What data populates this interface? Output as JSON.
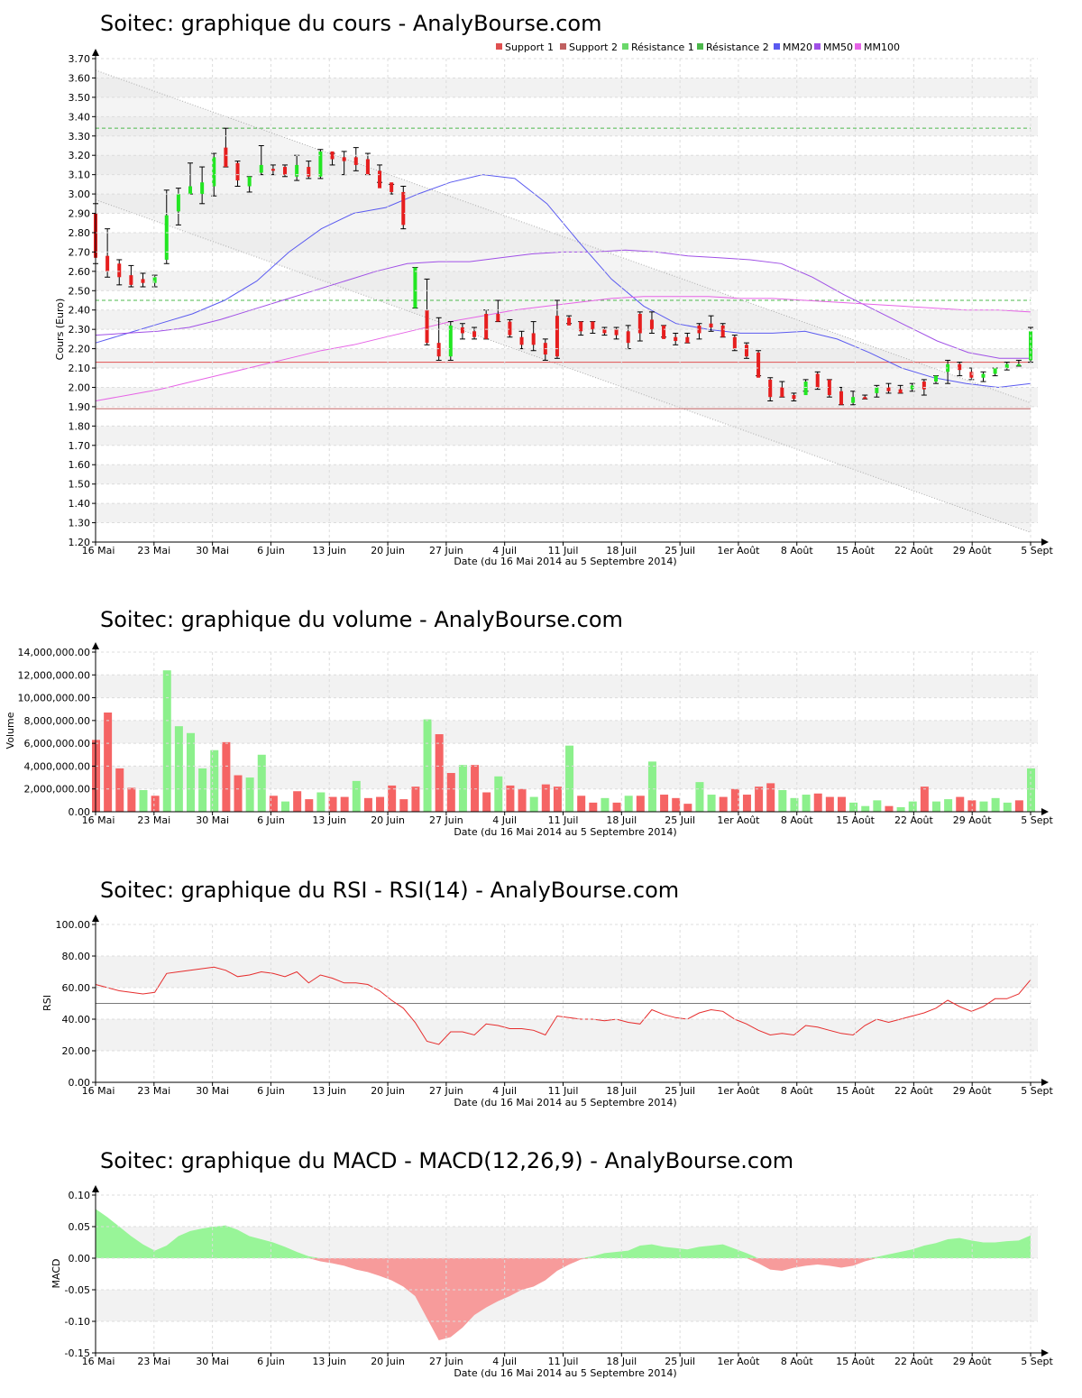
{
  "page": {
    "background": "#ffffff"
  },
  "colors": {
    "up": "#22e622",
    "down": "#e61e1e",
    "vol_up": "#8cf08c",
    "vol_down": "#f56464",
    "macd_pos": "#98f598",
    "macd_neg": "#f79b9b",
    "support": "#e05050",
    "resistance": "#4cb84c",
    "mm20": "#5a5af0",
    "mm50": "#a050e6",
    "mm100": "#e664e6",
    "rsi_line": "#e62d2d",
    "grid_band": "#f2f2f2"
  },
  "date_axis": {
    "labels": [
      "16 Mai",
      "23 Mai",
      "30 Mai",
      "6 Juin",
      "13 Juin",
      "20 Juin",
      "27 Juin",
      "4 Juil",
      "11 Juil",
      "18 Juil",
      "25 Juil",
      "1er Août",
      "8 Août",
      "15 Août",
      "22 Août",
      "29 Août",
      "5 Sept"
    ],
    "title": "Date (du 16 Mai 2014 au 5 Septembre 2014)"
  },
  "charts": {
    "price": {
      "title": "Soitec: graphique du cours - AnalyBourse.com",
      "ylabel": "Cours (Euro)",
      "yticks": [
        "1.20",
        "1.30",
        "1.40",
        "1.50",
        "1.60",
        "1.70",
        "1.80",
        "1.90",
        "2.00",
        "2.10",
        "2.20",
        "2.30",
        "2.40",
        "2.50",
        "2.60",
        "2.70",
        "2.80",
        "2.90",
        "3.00",
        "3.10",
        "3.20",
        "3.30",
        "3.40",
        "3.50",
        "3.60",
        "3.70"
      ],
      "legend": [
        {
          "label": "Support 1",
          "color": "#e05050"
        },
        {
          "label": "Support 2",
          "color": "#c06060"
        },
        {
          "label": "Résistance 1",
          "color": "#6ad86a"
        },
        {
          "label": "Résistance 2",
          "color": "#4cb84c"
        },
        {
          "label": "MM20",
          "color": "#5a5af0"
        },
        {
          "label": "MM50",
          "color": "#a050e6"
        },
        {
          "label": "MM100",
          "color": "#e664e6"
        }
      ]
    },
    "volume": {
      "title": "Soitec: graphique du volume - AnalyBourse.com",
      "ylabel": "Volume",
      "yticks": [
        "0.00",
        "2,000,000.00",
        "4,000,000.00",
        "6,000,000.00",
        "8,000,000.00",
        "10,000,000.00",
        "12,000,000.00",
        "14,000,000.00"
      ]
    },
    "rsi": {
      "title": "Soitec: graphique du RSI - RSI(14) - AnalyBourse.com",
      "ylabel": "RSI",
      "yticks": [
        "0.00",
        "20.00",
        "40.00",
        "60.00",
        "80.00",
        "100.00"
      ]
    },
    "macd": {
      "title": "Soitec: graphique du MACD - MACD(12,26,9) - AnalyBourse.com",
      "ylabel": "MACD",
      "yticks": [
        "-0.15",
        "-0.10",
        "-0.05",
        "0.00",
        "0.05",
        "0.10"
      ]
    }
  },
  "chart_data": [
    {
      "type": "candlestick",
      "title": "Soitec: graphique du cours - AnalyBourse.com",
      "xlabel": "Date (du 16 Mai 2014 au 5 Septembre 2014)",
      "ylabel": "Cours (Euro)",
      "ylim": [
        1.2,
        3.7
      ],
      "x_range": [
        "16 Mai",
        "5 Sept"
      ],
      "candles_ohlc": [
        [
          2.9,
          2.95,
          2.64,
          2.67
        ],
        [
          2.68,
          2.82,
          2.57,
          2.6
        ],
        [
          2.64,
          2.66,
          2.53,
          2.57
        ],
        [
          2.58,
          2.63,
          2.52,
          2.53
        ],
        [
          2.56,
          2.59,
          2.52,
          2.54
        ],
        [
          2.54,
          2.58,
          2.52,
          2.57
        ],
        [
          2.66,
          3.02,
          2.64,
          2.89
        ],
        [
          2.91,
          3.03,
          2.84,
          3.0
        ],
        [
          3.0,
          3.16,
          3.0,
          3.04
        ],
        [
          3.0,
          3.14,
          2.95,
          3.06
        ],
        [
          3.04,
          3.21,
          2.99,
          3.19
        ],
        [
          3.24,
          3.34,
          3.14,
          3.14
        ],
        [
          3.16,
          3.17,
          3.04,
          3.07
        ],
        [
          3.04,
          3.09,
          3.01,
          3.09
        ],
        [
          3.11,
          3.25,
          3.1,
          3.15
        ],
        [
          3.13,
          3.15,
          3.1,
          3.12
        ],
        [
          3.14,
          3.15,
          3.09,
          3.1
        ],
        [
          3.09,
          3.2,
          3.07,
          3.15
        ],
        [
          3.14,
          3.17,
          3.08,
          3.09
        ],
        [
          3.09,
          3.23,
          3.08,
          3.22
        ],
        [
          3.22,
          3.21,
          3.15,
          3.18
        ],
        [
          3.19,
          3.22,
          3.1,
          3.17
        ],
        [
          3.19,
          3.24,
          3.12,
          3.15
        ],
        [
          3.18,
          3.21,
          3.1,
          3.1
        ],
        [
          3.12,
          3.15,
          3.06,
          3.03
        ],
        [
          3.06,
          3.05,
          3.0,
          3.01
        ],
        [
          3.01,
          3.04,
          2.82,
          2.84
        ],
        [
          2.41,
          2.62,
          2.41,
          2.62
        ],
        [
          2.4,
          2.56,
          2.22,
          2.23
        ],
        [
          2.23,
          2.36,
          2.14,
          2.16
        ],
        [
          2.16,
          2.34,
          2.14,
          2.32
        ],
        [
          2.31,
          2.33,
          2.25,
          2.28
        ],
        [
          2.29,
          2.31,
          2.25,
          2.26
        ],
        [
          2.38,
          2.4,
          2.25,
          2.25
        ],
        [
          2.38,
          2.45,
          2.34,
          2.34
        ],
        [
          2.34,
          2.35,
          2.26,
          2.27
        ],
        [
          2.26,
          2.29,
          2.2,
          2.22
        ],
        [
          2.28,
          2.34,
          2.19,
          2.22
        ],
        [
          2.23,
          2.25,
          2.14,
          2.17
        ],
        [
          2.37,
          2.45,
          2.15,
          2.16
        ],
        [
          2.36,
          2.37,
          2.33,
          2.32
        ],
        [
          2.34,
          2.34,
          2.27,
          2.29
        ],
        [
          2.34,
          2.34,
          2.28,
          2.3
        ],
        [
          2.3,
          2.31,
          2.27,
          2.28
        ],
        [
          2.3,
          2.31,
          2.25,
          2.27
        ],
        [
          2.29,
          2.32,
          2.2,
          2.23
        ],
        [
          2.38,
          2.39,
          2.24,
          2.28
        ],
        [
          2.35,
          2.39,
          2.28,
          2.3
        ],
        [
          2.32,
          2.32,
          2.26,
          2.25
        ],
        [
          2.26,
          2.28,
          2.22,
          2.24
        ],
        [
          2.26,
          2.28,
          2.23,
          2.23
        ],
        [
          2.32,
          2.33,
          2.25,
          2.28
        ],
        [
          2.33,
          2.37,
          2.29,
          2.31
        ],
        [
          2.32,
          2.33,
          2.26,
          2.26
        ],
        [
          2.26,
          2.27,
          2.19,
          2.2
        ],
        [
          2.22,
          2.23,
          2.15,
          2.16
        ],
        [
          2.18,
          2.19,
          2.06,
          2.05
        ],
        [
          2.04,
          2.05,
          1.93,
          1.95
        ],
        [
          2.0,
          2.03,
          1.95,
          1.95
        ],
        [
          1.96,
          1.97,
          1.93,
          1.94
        ],
        [
          1.96,
          2.04,
          1.98,
          2.03
        ],
        [
          2.07,
          2.08,
          1.99,
          2.0
        ],
        [
          2.04,
          2.04,
          1.95,
          1.96
        ],
        [
          1.98,
          2.0,
          1.91,
          1.91
        ],
        [
          1.92,
          1.98,
          1.91,
          1.95
        ],
        [
          1.95,
          1.96,
          1.94,
          1.94
        ],
        [
          1.97,
          2.01,
          1.95,
          2.0
        ],
        [
          2.0,
          2.02,
          1.97,
          1.98
        ],
        [
          1.99,
          2.01,
          1.97,
          1.97
        ],
        [
          1.99,
          2.02,
          1.98,
          2.01
        ],
        [
          2.03,
          2.04,
          1.96,
          1.99
        ],
        [
          2.03,
          2.06,
          2.02,
          2.06
        ],
        [
          2.08,
          2.14,
          2.02,
          2.12
        ],
        [
          2.12,
          2.13,
          2.06,
          2.09
        ],
        [
          2.08,
          2.1,
          2.04,
          2.05
        ],
        [
          2.05,
          2.08,
          2.03,
          2.07
        ],
        [
          2.07,
          2.1,
          2.06,
          2.1
        ],
        [
          2.1,
          2.13,
          2.09,
          2.12
        ],
        [
          2.12,
          2.14,
          2.11,
          2.12
        ],
        [
          2.14,
          2.31,
          2.13,
          2.29
        ]
      ],
      "support_1": 2.13,
      "support_2": 1.89,
      "resistance_1": 2.45,
      "resistance_2": 3.34,
      "channel": {
        "upper": [
          3.64,
          1.92
        ],
        "lower": [
          2.97,
          1.25
        ]
      },
      "mm20": [
        2.23,
        2.28,
        2.33,
        2.38,
        2.45,
        2.55,
        2.7,
        2.82,
        2.9,
        2.93,
        3.0,
        3.06,
        3.1,
        3.08,
        2.95,
        2.75,
        2.56,
        2.42,
        2.33,
        2.3,
        2.28,
        2.28,
        2.29,
        2.25,
        2.18,
        2.1,
        2.05,
        2.02,
        2.0,
        2.02
      ],
      "mm50": [
        2.27,
        2.28,
        2.29,
        2.31,
        2.35,
        2.4,
        2.45,
        2.5,
        2.55,
        2.6,
        2.64,
        2.65,
        2.65,
        2.67,
        2.69,
        2.7,
        2.7,
        2.71,
        2.7,
        2.68,
        2.67,
        2.66,
        2.64,
        2.57,
        2.48,
        2.4,
        2.32,
        2.24,
        2.18,
        2.15,
        2.15
      ],
      "mm100": [
        1.93,
        1.96,
        1.99,
        2.03,
        2.07,
        2.11,
        2.15,
        2.19,
        2.22,
        2.26,
        2.3,
        2.34,
        2.37,
        2.4,
        2.42,
        2.44,
        2.46,
        2.47,
        2.47,
        2.47,
        2.46,
        2.46,
        2.45,
        2.44,
        2.43,
        2.42,
        2.41,
        2.4,
        2.4,
        2.39
      ]
    },
    {
      "type": "bar",
      "title": "Soitec: graphique du volume - AnalyBourse.com",
      "xlabel": "Date (du 16 Mai 2014 au 5 Septembre 2014)",
      "ylabel": "Volume",
      "ylim": [
        0,
        14000000
      ],
      "values": [
        6300000,
        8700000,
        3800000,
        2100000,
        1900000,
        1400000,
        12400000,
        7500000,
        6900000,
        3800000,
        5400000,
        6100000,
        3200000,
        3000000,
        5000000,
        1400000,
        900000,
        1800000,
        1100000,
        1700000,
        1300000,
        1300000,
        2700000,
        1200000,
        1300000,
        2300000,
        1100000,
        2200000,
        8100000,
        6800000,
        3400000,
        4100000,
        4100000,
        1700000,
        3100000,
        2300000,
        2000000,
        1300000,
        2400000,
        2200000,
        5800000,
        1400000,
        800000,
        1200000,
        800000,
        1400000,
        1400000,
        4400000,
        1500000,
        1200000,
        700000,
        2600000,
        1500000,
        1300000,
        2000000,
        1500000,
        2200000,
        2500000,
        1900000,
        1200000,
        1500000,
        1600000,
        1300000,
        1300000,
        800000,
        500000,
        1000000,
        500000,
        400000,
        900000,
        2200000,
        900000,
        1100000,
        1300000,
        1000000,
        900000,
        1200000,
        800000,
        1000000,
        3800000
      ],
      "colors": [
        "down",
        "down",
        "down",
        "down",
        "up",
        "down",
        "up",
        "up",
        "up",
        "up",
        "up",
        "down",
        "down",
        "up",
        "up",
        "down",
        "up",
        "down",
        "down",
        "up",
        "down",
        "down",
        "up",
        "down",
        "down",
        "down",
        "down",
        "down",
        "up",
        "down",
        "down",
        "up",
        "down",
        "down",
        "up",
        "down",
        "down",
        "up",
        "down",
        "down",
        "up",
        "down",
        "down",
        "up",
        "down",
        "up",
        "down",
        "up",
        "down",
        "down",
        "down",
        "up",
        "up",
        "down",
        "down",
        "down",
        "down",
        "down",
        "up",
        "up",
        "up",
        "down",
        "down",
        "down",
        "up",
        "up",
        "up",
        "down",
        "up",
        "up",
        "down",
        "up",
        "up",
        "down",
        "down",
        "up",
        "up",
        "up",
        "down",
        "up"
      ]
    },
    {
      "type": "line",
      "title": "Soitec: graphique du RSI - RSI(14) - AnalyBourse.com",
      "xlabel": "Date (du 16 Mai 2014 au 5 Septembre 2014)",
      "ylabel": "RSI",
      "ylim": [
        0,
        100
      ],
      "reference_line": 50,
      "values": [
        62,
        60,
        58,
        57,
        56,
        57,
        69,
        70,
        71,
        72,
        73,
        71,
        67,
        68,
        70,
        69,
        67,
        70,
        63,
        68,
        66,
        63,
        63,
        62,
        58,
        52,
        47,
        38,
        26,
        24,
        32,
        32,
        30,
        37,
        36,
        34,
        34,
        33,
        30,
        42,
        41,
        40,
        40,
        39,
        40,
        38,
        37,
        46,
        43,
        41,
        40,
        44,
        46,
        45,
        40,
        37,
        33,
        30,
        31,
        30,
        36,
        35,
        33,
        31,
        30,
        36,
        40,
        38,
        40,
        42,
        44,
        47,
        52,
        48,
        45,
        48,
        53,
        53,
        56,
        65
      ]
    },
    {
      "type": "area",
      "title": "Soitec: graphique du MACD - MACD(12,26,9) - AnalyBourse.com",
      "xlabel": "Date (du 16 Mai 2014 au 5 Septembre 2014)",
      "ylabel": "MACD",
      "ylim": [
        -0.15,
        0.1
      ],
      "values": [
        0.078,
        0.065,
        0.05,
        0.035,
        0.022,
        0.012,
        0.02,
        0.035,
        0.043,
        0.047,
        0.05,
        0.052,
        0.045,
        0.035,
        0.03,
        0.025,
        0.018,
        0.01,
        0.003,
        -0.005,
        -0.008,
        -0.012,
        -0.018,
        -0.022,
        -0.028,
        -0.035,
        -0.045,
        -0.06,
        -0.095,
        -0.13,
        -0.125,
        -0.11,
        -0.09,
        -0.078,
        -0.068,
        -0.06,
        -0.05,
        -0.045,
        -0.035,
        -0.02,
        -0.01,
        -0.002,
        0.003,
        0.008,
        0.01,
        0.012,
        0.02,
        0.022,
        0.018,
        0.016,
        0.014,
        0.018,
        0.02,
        0.022,
        0.015,
        0.008,
        -0.008,
        -0.018,
        -0.02,
        -0.015,
        -0.012,
        -0.01,
        -0.012,
        -0.015,
        -0.012,
        -0.005,
        0.002,
        0.006,
        0.01,
        0.014,
        0.02,
        0.024,
        0.03,
        0.032,
        0.028,
        0.025,
        0.025,
        0.027,
        0.028,
        0.036
      ]
    }
  ]
}
